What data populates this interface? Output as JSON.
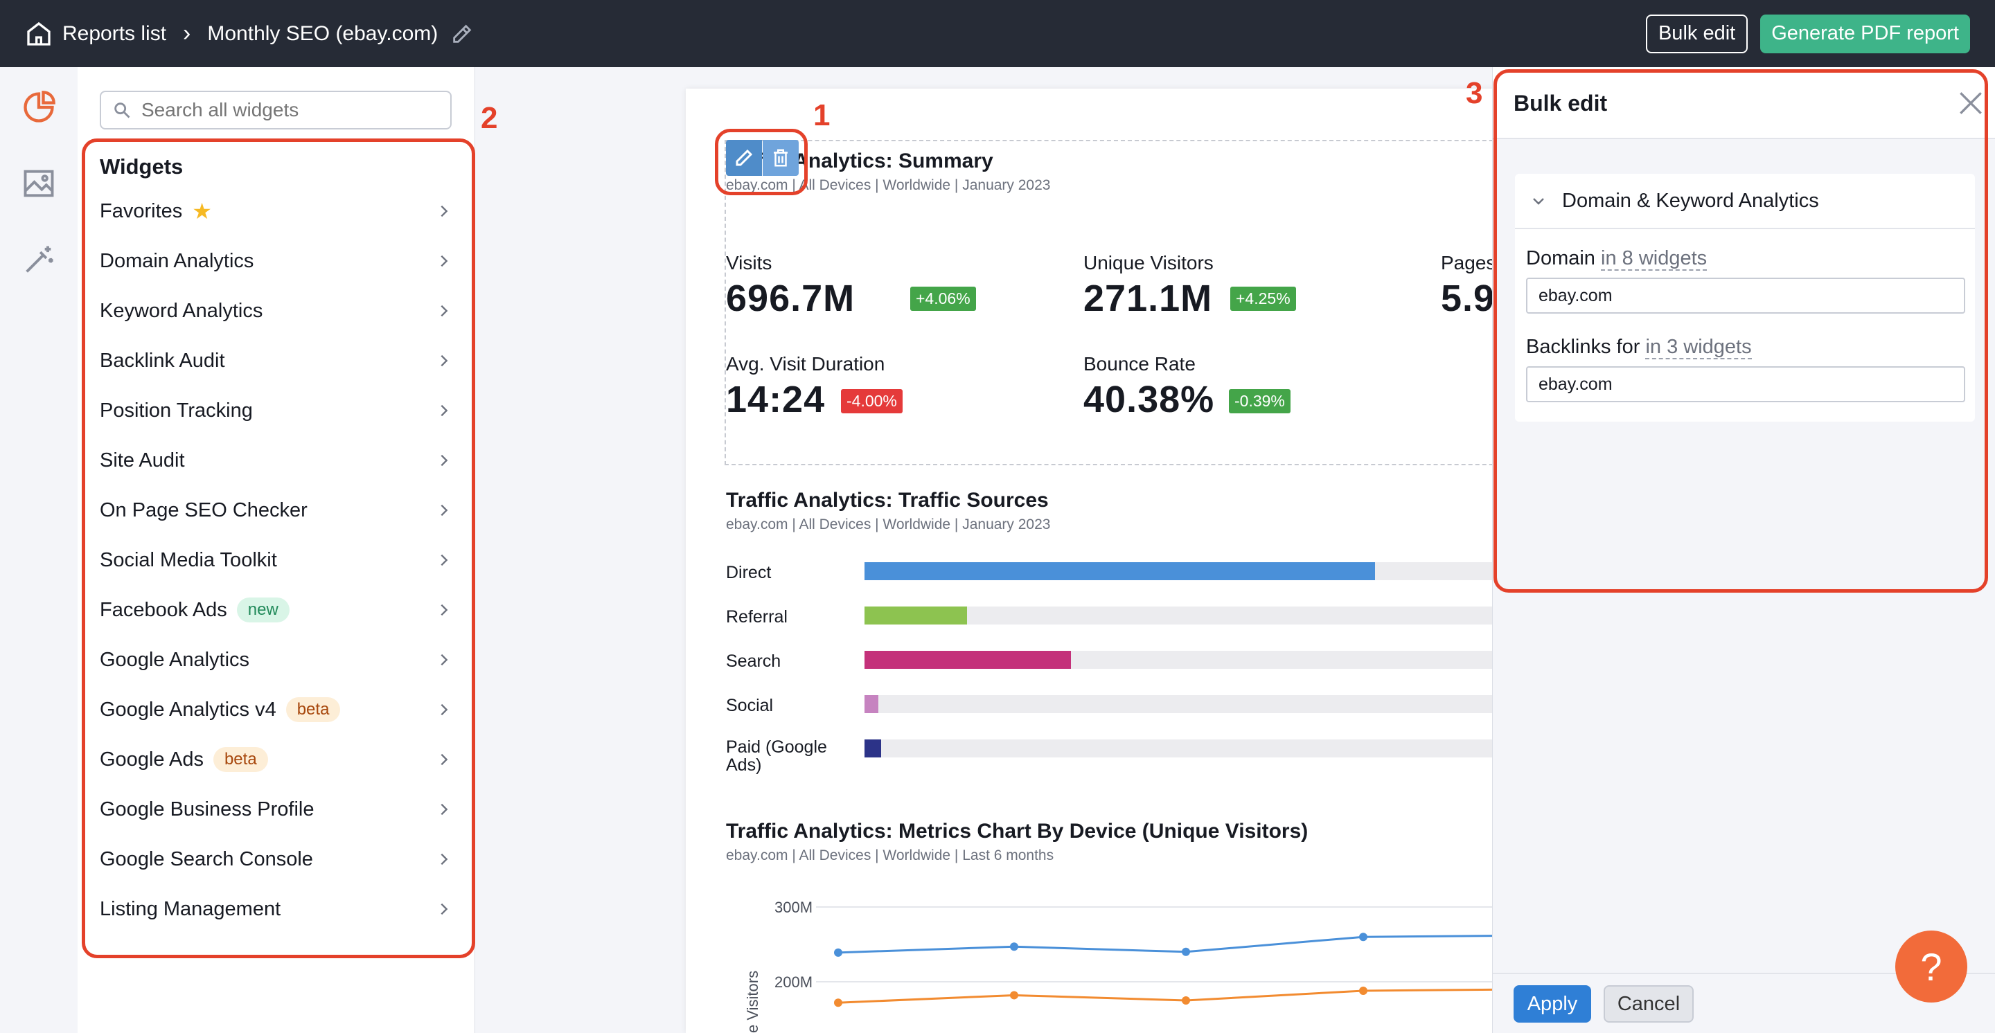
{
  "topbar": {
    "breadcrumb_root": "Reports list",
    "breadcrumb_current": "Monthly SEO (ebay.com)",
    "bulk_edit_label": "Bulk edit",
    "generate_pdf_label": "Generate PDF report"
  },
  "widgets_panel": {
    "search_placeholder": "Search all widgets",
    "title": "Widgets",
    "items": [
      {
        "label": "Favorites",
        "badge": "star-icon"
      },
      {
        "label": "Domain Analytics"
      },
      {
        "label": "Keyword Analytics"
      },
      {
        "label": "Backlink Audit"
      },
      {
        "label": "Position Tracking"
      },
      {
        "label": "Site Audit"
      },
      {
        "label": "On Page SEO Checker"
      },
      {
        "label": "Social Media Toolkit"
      },
      {
        "label": "Facebook Ads",
        "badge": "new"
      },
      {
        "label": "Google Analytics"
      },
      {
        "label": "Google Analytics v4",
        "badge": "beta"
      },
      {
        "label": "Google Ads",
        "badge": "beta"
      },
      {
        "label": "Google Business Profile"
      },
      {
        "label": "Google Search Console"
      },
      {
        "label": "Listing Management"
      }
    ]
  },
  "annotations": {
    "one": "1",
    "two": "2",
    "three": "3"
  },
  "report": {
    "summary": {
      "title": "Traffic Analytics: Summary",
      "subtitle": "ebay.com | All Devices | Worldwide | January 2023",
      "metrics": [
        {
          "label": "Visits",
          "value": "696.7M",
          "delta": "+4.06%"
        },
        {
          "label": "Unique Visitors",
          "value": "271.1M",
          "delta": "+4.25%"
        },
        {
          "label": "Pages",
          "value": "5.9"
        },
        {
          "label": "Avg. Visit Duration",
          "value": "14:24",
          "delta": "-4.00%"
        },
        {
          "label": "Bounce Rate",
          "value": "40.38%",
          "delta": "-0.39%"
        }
      ]
    },
    "sources": {
      "title": "Traffic Analytics: Traffic Sources",
      "subtitle": "ebay.com | All Devices | Worldwide | January 2023",
      "rows": [
        {
          "label": "Direct",
          "share": 0.403,
          "color": "#4a90d9"
        },
        {
          "label": "Referral",
          "share": 0.081,
          "color": "#8dc350"
        },
        {
          "label": "Search",
          "share": 0.163,
          "color": "#c4317a"
        },
        {
          "label": "Social",
          "share": 0.011,
          "color": "#c683c0"
        },
        {
          "label": "Paid (Google Ads)",
          "share": 0.013,
          "color": "#2c3388"
        }
      ]
    },
    "device_chart": {
      "title": "Traffic Analytics: Metrics Chart By Device (Unique Visitors)",
      "subtitle": "ebay.com | All Devices | Worldwide | Last 6 months",
      "ylabel": "e Visitors",
      "y_ticks": [
        "300M",
        "200M"
      ]
    }
  },
  "chart_data": {
    "type": "line",
    "title": "Traffic Analytics: Metrics Chart By Device (Unique Visitors)",
    "ylabel": "Unique Visitors",
    "y_ticks": [
      "300M",
      "200M"
    ],
    "ylim": [
      150,
      300
    ],
    "series": [
      {
        "name": "",
        "color": "#4a90d9",
        "values": [
          239,
          247,
          240,
          260,
          262
        ]
      },
      {
        "name": "",
        "color": "#f28b30",
        "values": [
          172,
          182,
          175,
          188,
          190
        ]
      }
    ]
  },
  "bulk_edit": {
    "title": "Bulk edit",
    "section_title": "Domain & Keyword Analytics",
    "domain_label": "Domain",
    "domain_scope": "in 8 widgets",
    "domain_value": "ebay.com",
    "backlinks_label": "Backlinks for",
    "backlinks_scope": "in 3 widgets",
    "backlinks_value": "ebay.com",
    "apply_label": "Apply",
    "cancel_label": "Cancel"
  },
  "help_label": "?",
  "colors": {
    "accent_green": "#3eb489",
    "annotation_red": "#e4412a",
    "topbar": "#262b36"
  }
}
